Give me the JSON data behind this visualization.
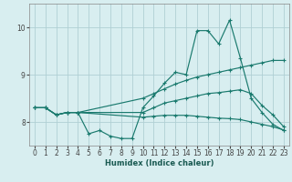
{
  "xlabel": "Humidex (Indice chaleur)",
  "bg_color": "#d8eef0",
  "grid_color": "#b0cfd4",
  "line_color": "#1a7a6e",
  "xlim": [
    -0.5,
    23.5
  ],
  "ylim": [
    7.5,
    10.5
  ],
  "yticks": [
    8,
    9,
    10
  ],
  "xticks": [
    0,
    1,
    2,
    3,
    4,
    5,
    6,
    7,
    8,
    9,
    10,
    11,
    12,
    13,
    14,
    15,
    16,
    17,
    18,
    19,
    20,
    21,
    22,
    23
  ],
  "lines": [
    {
      "x": [
        0,
        1,
        2,
        3,
        4,
        5,
        6,
        7,
        8,
        9,
        10,
        11,
        12,
        13,
        14,
        15,
        16,
        17,
        18,
        19,
        20,
        21,
        22,
        23
      ],
      "y": [
        8.3,
        8.3,
        8.15,
        8.2,
        8.2,
        7.75,
        7.82,
        7.7,
        7.65,
        7.65,
        8.3,
        8.55,
        8.82,
        9.05,
        9.0,
        9.93,
        9.93,
        9.65,
        10.15,
        9.35,
        8.5,
        8.2,
        7.95,
        7.82
      ]
    },
    {
      "x": [
        0,
        1,
        2,
        3,
        4,
        10,
        11,
        12,
        13,
        14,
        15,
        16,
        17,
        18,
        19,
        20,
        21,
        22,
        23
      ],
      "y": [
        8.3,
        8.3,
        8.15,
        8.2,
        8.2,
        8.5,
        8.6,
        8.7,
        8.8,
        8.88,
        8.95,
        9.0,
        9.05,
        9.1,
        9.15,
        9.2,
        9.25,
        9.3,
        9.3
      ]
    },
    {
      "x": [
        0,
        1,
        2,
        3,
        4,
        10,
        11,
        12,
        13,
        14,
        15,
        16,
        17,
        18,
        19,
        20,
        21,
        22,
        23
      ],
      "y": [
        8.3,
        8.3,
        8.15,
        8.2,
        8.2,
        8.2,
        8.3,
        8.4,
        8.45,
        8.5,
        8.55,
        8.6,
        8.62,
        8.65,
        8.68,
        8.6,
        8.35,
        8.15,
        7.9
      ]
    },
    {
      "x": [
        0,
        1,
        2,
        3,
        4,
        10,
        11,
        12,
        13,
        14,
        15,
        16,
        17,
        18,
        19,
        20,
        21,
        22,
        23
      ],
      "y": [
        8.3,
        8.3,
        8.15,
        8.2,
        8.2,
        8.1,
        8.12,
        8.14,
        8.14,
        8.14,
        8.12,
        8.1,
        8.08,
        8.07,
        8.05,
        8.0,
        7.95,
        7.9,
        7.83
      ]
    }
  ]
}
